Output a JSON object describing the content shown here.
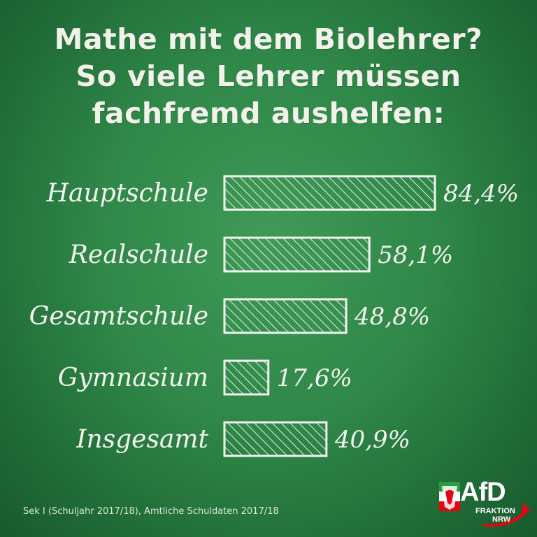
{
  "title_lines": [
    "Mathe mit dem Biolehrer?",
    "So viele Lehrer müssen",
    "fachfremd aushelfen:"
  ],
  "chart_data": {
    "type": "bar",
    "orientation": "horizontal",
    "categories": [
      "Hauptschule",
      "Realschule",
      "Gesamtschule",
      "Gymnasium",
      "Insgesamt"
    ],
    "values": [
      84.4,
      58.1,
      48.8,
      17.6,
      40.9
    ],
    "value_labels": [
      "84,4%",
      "58,1%",
      "48,8%",
      "17,6%",
      "40,9%"
    ],
    "unit": "%",
    "xlim": [
      0,
      84.4
    ],
    "grid": false,
    "legend": "none",
    "bar_fill": "hatched"
  },
  "source": "Sek I (Schuljahr 2017/18), Amtliche Schuldaten 2017/18",
  "logo": {
    "name": "AfD",
    "line1": "FRAKTION",
    "line2": "NRW"
  },
  "colors": {
    "background": "#2f8748",
    "chalk": "#f4f4ee",
    "logo_red": "#e30613"
  }
}
